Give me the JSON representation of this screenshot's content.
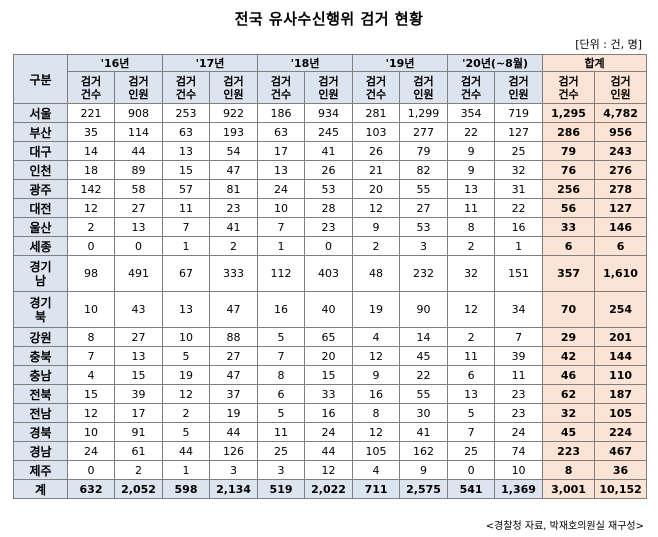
{
  "title": "전국 유사수신행위 검거 현황",
  "unit_note": "[단위 : 건, 명]",
  "region_header": "구분",
  "year_headers": [
    "'16년",
    "'17년",
    "'18년",
    "'19년",
    "'20년(~8월)"
  ],
  "total_header": "합계",
  "sub_headers": {
    "cases_top": "검거",
    "cases_bottom": "건수",
    "persons_top": "검거",
    "persons_bottom": "인원"
  },
  "rows": [
    {
      "region": "서울",
      "values": [
        "221",
        "908",
        "253",
        "922",
        "186",
        "934",
        "281",
        "1,299",
        "354",
        "719",
        "1,295",
        "4,782"
      ]
    },
    {
      "region": "부산",
      "values": [
        "35",
        "114",
        "63",
        "193",
        "63",
        "245",
        "103",
        "277",
        "22",
        "127",
        "286",
        "956"
      ]
    },
    {
      "region": "대구",
      "values": [
        "14",
        "44",
        "13",
        "54",
        "17",
        "41",
        "26",
        "79",
        "9",
        "25",
        "79",
        "243"
      ]
    },
    {
      "region": "인천",
      "values": [
        "18",
        "89",
        "15",
        "47",
        "13",
        "26",
        "21",
        "82",
        "9",
        "32",
        "76",
        "276"
      ]
    },
    {
      "region": "광주",
      "values": [
        "142",
        "58",
        "57",
        "81",
        "24",
        "53",
        "20",
        "55",
        "13",
        "31",
        "256",
        "278"
      ]
    },
    {
      "region": "대전",
      "values": [
        "12",
        "27",
        "11",
        "23",
        "10",
        "28",
        "12",
        "27",
        "11",
        "22",
        "56",
        "127"
      ]
    },
    {
      "region": "울산",
      "values": [
        "2",
        "13",
        "7",
        "41",
        "7",
        "23",
        "9",
        "53",
        "8",
        "16",
        "33",
        "146"
      ]
    },
    {
      "region": "세종",
      "values": [
        "0",
        "0",
        "1",
        "2",
        "1",
        "0",
        "2",
        "3",
        "2",
        "1",
        "6",
        "6"
      ]
    },
    {
      "region": "경기남",
      "values": [
        "98",
        "491",
        "67",
        "333",
        "112",
        "403",
        "48",
        "232",
        "32",
        "151",
        "357",
        "1,610"
      ]
    },
    {
      "region": "경기북",
      "values": [
        "10",
        "43",
        "13",
        "47",
        "16",
        "40",
        "19",
        "90",
        "12",
        "34",
        "70",
        "254"
      ]
    },
    {
      "region": "강원",
      "values": [
        "8",
        "27",
        "10",
        "88",
        "5",
        "65",
        "4",
        "14",
        "2",
        "7",
        "29",
        "201"
      ]
    },
    {
      "region": "충북",
      "values": [
        "7",
        "13",
        "5",
        "27",
        "7",
        "20",
        "12",
        "45",
        "11",
        "39",
        "42",
        "144"
      ]
    },
    {
      "region": "충남",
      "values": [
        "4",
        "15",
        "19",
        "47",
        "8",
        "15",
        "9",
        "22",
        "6",
        "11",
        "46",
        "110"
      ]
    },
    {
      "region": "전북",
      "values": [
        "15",
        "39",
        "12",
        "37",
        "6",
        "33",
        "16",
        "55",
        "13",
        "23",
        "62",
        "187"
      ]
    },
    {
      "region": "전남",
      "values": [
        "12",
        "17",
        "2",
        "19",
        "5",
        "16",
        "8",
        "30",
        "5",
        "23",
        "32",
        "105"
      ]
    },
    {
      "region": "경북",
      "values": [
        "10",
        "91",
        "5",
        "44",
        "11",
        "24",
        "12",
        "41",
        "7",
        "24",
        "45",
        "224"
      ]
    },
    {
      "region": "경남",
      "values": [
        "24",
        "61",
        "44",
        "126",
        "25",
        "44",
        "105",
        "162",
        "25",
        "74",
        "223",
        "467"
      ]
    },
    {
      "region": "제주",
      "values": [
        "0",
        "2",
        "1",
        "3",
        "3",
        "12",
        "4",
        "9",
        "0",
        "10",
        "8",
        "36"
      ]
    },
    {
      "region": "계",
      "values": [
        "632",
        "2,052",
        "598",
        "2,134",
        "519",
        "2,022",
        "711",
        "2,575",
        "541",
        "1,369",
        "3,001",
        "10,152"
      ]
    }
  ],
  "source": "<경찰청 자료, 박재호의원실 재구성>"
}
